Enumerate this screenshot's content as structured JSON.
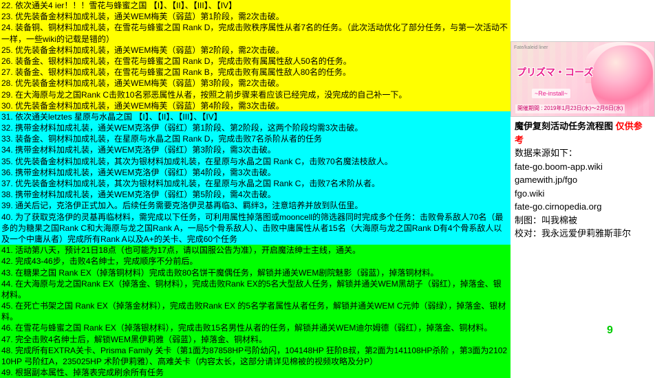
{
  "colors": {
    "yellow": "#ffff00",
    "cyan": "#00ffff",
    "green": "#00ff00",
    "red": "#ff0000",
    "white": "#ffffff",
    "pink": "#e91e8c"
  },
  "lines": [
    {
      "n": "22",
      "c": "yellow",
      "t": "依次通关4 ier！！！雪花与蜂蜜之国 【I】、【II】、【III】、【IV】"
    },
    {
      "n": "23",
      "c": "yellow",
      "t": "优先装备金材料加成礼装，通关WEM梅芙（弱蓝）第1阶段，需2次击破。"
    },
    {
      "n": "24",
      "c": "yellow",
      "t": "装备铜、铜材料加成礼装，在雪花与蜂蜜之国 Rank D，完成击败秩序属性从者7名的任务。（此次活动优化了部分任务，与第一次活动不一样，一些wiki的记载是错的）"
    },
    {
      "n": "25",
      "c": "yellow",
      "t": "优先装备金材料加成礼装，通关WEM梅芙（弱蓝）第2阶段，需2次击破。"
    },
    {
      "n": "26",
      "c": "yellow",
      "t": "装备金、银材料加成礼装，在雪花与蜂蜜之国 Rank D，完成击败有属属性敌人50名的任务。"
    },
    {
      "n": "27",
      "c": "yellow",
      "t": "装备金、银材料加成礼装，在雪花与蜂蜜之国 Rank B，完成击败有属属性敌人80名的任务。"
    },
    {
      "n": "28",
      "c": "yellow",
      "t": "优先装备金材料加成礼装，通关WEM梅芙（弱蓝）第3阶段，需2次击破。"
    },
    {
      "n": "29",
      "c": "yellow",
      "t": "在大海原与龙之国Rank C击败10名邪恶属性从者，按照之前步骤来看应该已经完成，没完成的自己补一下。"
    },
    {
      "n": "30",
      "c": "yellow",
      "t": "优先装备金材料加成礼装，通关WEM梅芙（弱蓝）第4阶段，需3次击破。"
    },
    {
      "n": "31",
      "c": "cyan",
      "t": "依次通关letztes 星原与水晶之国 【I】、【II】、【III】、【IV】"
    },
    {
      "n": "32",
      "c": "cyan",
      "t": "携带金材料加成礼装，通关WEM克洛伊（弱红）第1阶段、第2阶段，这两个阶段均需3次击破。"
    },
    {
      "n": "33",
      "c": "cyan",
      "t": "装备金、铜材料加成礼装，在星原与水晶之国 Rank D，完成击败7名杀阶从者的任务"
    },
    {
      "n": "34",
      "c": "cyan",
      "t": "携带金材料加成礼装，通关WEM克洛伊（弱红）第3阶段，需3次击破。"
    },
    {
      "n": "35",
      "c": "cyan",
      "t": "优先装备金材料加成礼装，其次为银材料加成礼装，在星原与水晶之国 Rank C，击败70名魔法枝敌人。"
    },
    {
      "n": "36",
      "c": "cyan",
      "t": "携带金材料加成礼装，通关WEM克洛伊（弱红）第4阶段，需3次击破。"
    },
    {
      "n": "37",
      "c": "cyan",
      "t": "优先装备金材料加成礼装，其次为银材料加成礼装，在星原与水晶之国 Rank C，击败7名术阶从者。"
    },
    {
      "n": "38",
      "c": "cyan",
      "t": "携带金材料加成礼装，通关WEM克洛伊（弱红）第5阶段，需4次击破。"
    },
    {
      "n": "39",
      "c": "cyan",
      "t": "通关后记，克洛伊正式加入。后续任务需要克洛伊灵基再临3、羁绊3，注意培养并放到队伍里。"
    },
    {
      "n": "40",
      "c": "cyan",
      "t": "为了获取克洛伊的灵基再临材料，需完成以下任务，可利用属性掉落图或mooncell的筛选器同时完成多个任务：击败骨系敌人70名（最多的为糖果之国Rank C和大海原与龙之国Rank A，一局5个骨系敌人）、击败中庸属性从者15名（大海原与龙之国Rank D有4个骨系敌人以及一个中庸从者）完成所有Rank A以及A+的关卡、完成60个任务"
    },
    {
      "n": "41",
      "c": "green",
      "t": "活动第八天，预计21日18点（也可能为17点，请以国服公告为准），开启魔法绅士主线，通关。"
    },
    {
      "n": "42",
      "c": "green",
      "t": "完成43-46步，击败4名绅士，完成顺序不分前后。"
    },
    {
      "n": "43",
      "c": "green",
      "t": "在糖果之国 Rank EX（掉落铜材料）完成击败80名饼干魔偶任务，解锁并通关WEM剧院魅影（弱蓝），掉落铜材料。"
    },
    {
      "n": "44",
      "c": "green",
      "t": "在大海原与龙之国Rank EX（掉落金、铜材料），完成击败Rank EX的5名大型敌人任务，解锁并通关WEM黑胡子（弱红），掉落金、银材料。"
    },
    {
      "n": "45",
      "c": "green",
      "t": "在死亡书架之国 Rank EX（掉落金材料），完成击败Rank EX 的5名学者属性从者任务，解锁并通关WEM C元帅（弱绿），掉落金、银材料。"
    },
    {
      "n": "46",
      "c": "green",
      "t": "在雪花与蜂蜜之国 Rank EX（掉落银材料），完成击败15名男性从者的任务，解锁并通关WEM迪尔姆德（弱红），掉落金、铜材料。"
    },
    {
      "n": "47",
      "c": "green",
      "t": "完全击败4名绅士后，解锁WEM黑伊莉雅（弱蓝），掉落金、铜材料。"
    },
    {
      "n": "48",
      "c": "green",
      "t": "完成所有EXTRA关卡、Prisma Family 关卡（第1面为87858HP弓阶幼闪，104148HP 狂阶B叔，第2面为141108HP杀阶  ，第3面为210210HP 弓阶红A，235025HP 术阶伊莉雅）、高难关卡（内容太长，这部分请详见棉被的视频攻略及分P）"
    },
    {
      "n": "49",
      "c": "green",
      "t": "根据副本属性、掉落表完成刷余所有任务"
    }
  ],
  "banner": {
    "top": "Fate/kaleid liner",
    "logo": "プリズマ・コーズ",
    "sub": "~Re-install~",
    "date": "開催期間 : 2019年1月23日(水)～2月6日(水)"
  },
  "info": {
    "title_a": "魔伊复刻活动任务流程图",
    "title_b": "仅供参考",
    "src_label": "数据来源如下：",
    "src1": "fate-go.boom-app.wiki",
    "src2": "gamewith.jp/fgo",
    "src3": "fgo.wiki",
    "src4": "fate-go.cirnopedia.org",
    "author_label": "制图：",
    "author": "叫我棉被",
    "review_label": "校对：",
    "review": "我永远爱伊莉雅斯菲尔"
  },
  "watermark": "九游"
}
